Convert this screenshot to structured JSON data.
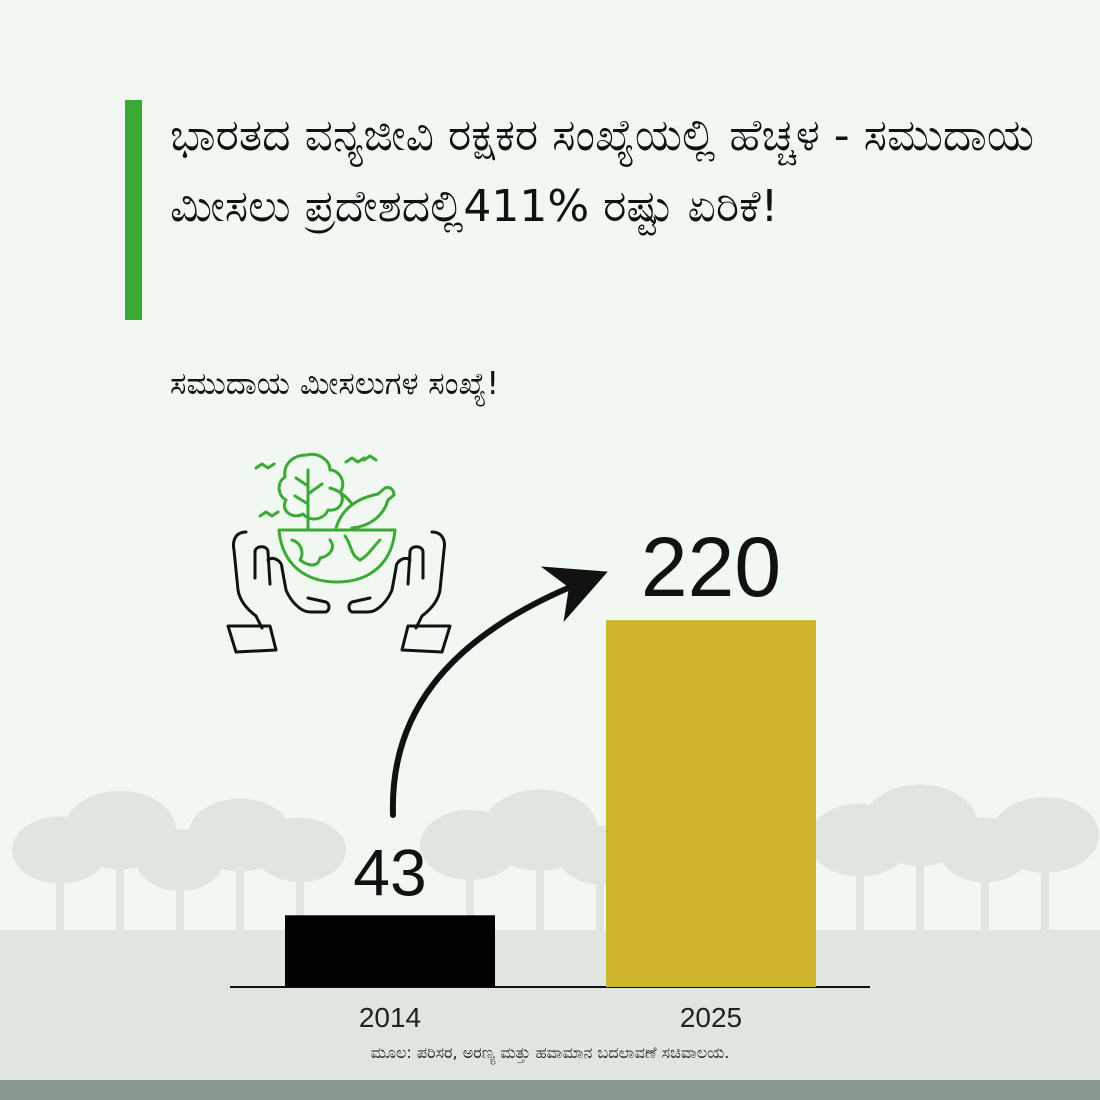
{
  "header": {
    "title": "ಭಾರತದ ವನ್ಯಜೀವಿ ರಕ್ಷಕರ ಸಂಖ್ಯೆಯಲ್ಲಿ ಹೆಚ್ಚಳ - ಸಮುದಾಯ ಮೀಸಲು ಪ್ರದೇಶದಲ್ಲಿ411% ರಷ್ಟು ಏರಿಕೆ!",
    "subtitle": "ಸಮುದಾಯ ಮೀಸಲುಗಳ ಸಂಖ್ಯೆ!"
  },
  "chart_data": {
    "type": "bar",
    "categories": [
      "2014",
      "2025"
    ],
    "values": [
      43,
      220
    ],
    "value_labels": [
      "43",
      "220"
    ],
    "title": "ಸಮುದಾಯ ಮೀಸಲುಗಳ ಸಂಖ್ಯೆ!",
    "xlabel": "",
    "ylabel": "",
    "ylim": [
      0,
      370
    ],
    "grid": false,
    "bar_colors": [
      "#000000",
      "#cfb52f"
    ],
    "annotation": "curved arrow from 2014 to 2025"
  },
  "source": "ಮೂಲ: ಪರಿಸರ, ಅರಣ್ಯ ಮತ್ತು ಹವಾಮಾನ ಬದಲಾವಣೆ ಸಚಿವಾಲಯ.",
  "icons": {
    "illustration": "hands-holding-earth-icon"
  },
  "colors": {
    "accent": "#3aaa35",
    "background": "#f1f8f1",
    "footer": "#8b9a8e"
  }
}
